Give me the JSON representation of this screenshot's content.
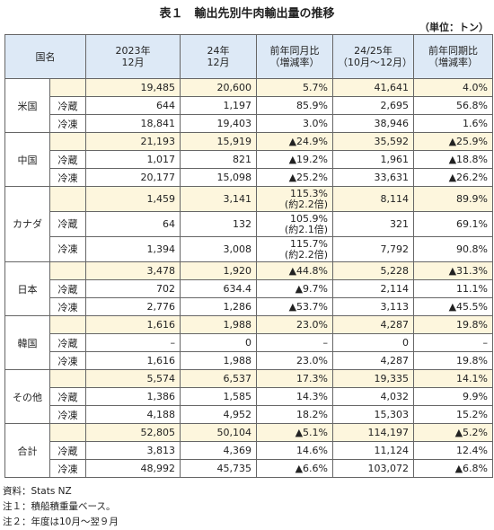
{
  "title": "表１　輸出先別牛肉輸出量の推移",
  "unit": "（単位：トン）",
  "header": {
    "country": "国名",
    "columns": [
      "2023年\n12月",
      "24年\n12月",
      "前年同月比\n（増減率）",
      "24/25年\n（10月～12月）",
      "前年同期比\n（増減率）"
    ]
  },
  "groups": [
    {
      "name": "米国",
      "rows": [
        {
          "values": [
            "19,485",
            "20,600",
            "5.7%",
            "41,641",
            "4.0%"
          ]
        },
        {
          "label": "冷蔵",
          "values": [
            "644",
            "1,197",
            "85.9%",
            "2,695",
            "56.8%"
          ]
        },
        {
          "label": "冷凍",
          "values": [
            "18,841",
            "19,403",
            "3.0%",
            "38,946",
            "1.6%"
          ]
        }
      ]
    },
    {
      "name": "中国",
      "rows": [
        {
          "values": [
            "21,193",
            "15,919",
            "▲24.9%",
            "35,592",
            "▲25.9%"
          ]
        },
        {
          "label": "冷蔵",
          "values": [
            "1,017",
            "821",
            "▲19.2%",
            "1,961",
            "▲18.8%"
          ]
        },
        {
          "label": "冷凍",
          "values": [
            "20,177",
            "15,098",
            "▲25.2%",
            "33,631",
            "▲26.2%"
          ]
        }
      ]
    },
    {
      "name": "カナダ",
      "rows": [
        {
          "values": [
            "1,459",
            "3,141",
            "115.3%\n(約2.2倍)",
            "8,114",
            "89.9%"
          ]
        },
        {
          "label": "冷蔵",
          "values": [
            "64",
            "132",
            "105.9%\n(約2.1倍)",
            "321",
            "69.1%"
          ]
        },
        {
          "label": "冷凍",
          "values": [
            "1,394",
            "3,008",
            "115.7%\n(約2.2倍)",
            "7,792",
            "90.8%"
          ]
        }
      ]
    },
    {
      "name": "日本",
      "rows": [
        {
          "values": [
            "3,478",
            "1,920",
            "▲44.8%",
            "5,228",
            "▲31.3%"
          ]
        },
        {
          "label": "冷蔵",
          "values": [
            "702",
            "634.4",
            "▲9.7%",
            "2,114",
            "11.1%"
          ]
        },
        {
          "label": "冷凍",
          "values": [
            "2,776",
            "1,286",
            "▲53.7%",
            "3,113",
            "▲45.5%"
          ]
        }
      ]
    },
    {
      "name": "韓国",
      "rows": [
        {
          "values": [
            "1,616",
            "1,988",
            "23.0%",
            "4,287",
            "19.8%"
          ]
        },
        {
          "label": "冷蔵",
          "values": [
            "–",
            "0",
            "–",
            "0",
            "–"
          ]
        },
        {
          "label": "冷凍",
          "values": [
            "1,616",
            "1,988",
            "23.0%",
            "4,287",
            "19.8%"
          ]
        }
      ]
    },
    {
      "name": "その他",
      "rows": [
        {
          "values": [
            "5,574",
            "6,537",
            "17.3%",
            "19,335",
            "14.1%"
          ]
        },
        {
          "label": "冷蔵",
          "values": [
            "1,386",
            "1,585",
            "14.3%",
            "4,032",
            "9.9%"
          ]
        },
        {
          "label": "冷凍",
          "values": [
            "4,188",
            "4,952",
            "18.2%",
            "15,303",
            "15.2%"
          ]
        }
      ]
    },
    {
      "name": "合計",
      "rows": [
        {
          "values": [
            "52,805",
            "50,104",
            "▲5.1%",
            "114,197",
            "▲5.2%"
          ]
        },
        {
          "label": "冷蔵",
          "values": [
            "3,813",
            "4,369",
            "14.6%",
            "11,124",
            "12.4%"
          ]
        },
        {
          "label": "冷凍",
          "values": [
            "48,992",
            "45,735",
            "▲6.6%",
            "103,072",
            "▲6.8%"
          ]
        }
      ]
    }
  ],
  "notes": [
    "資料：Stats NZ",
    "注１：積船積重量ベース。",
    "注２：年度は10月～翌９月"
  ]
}
